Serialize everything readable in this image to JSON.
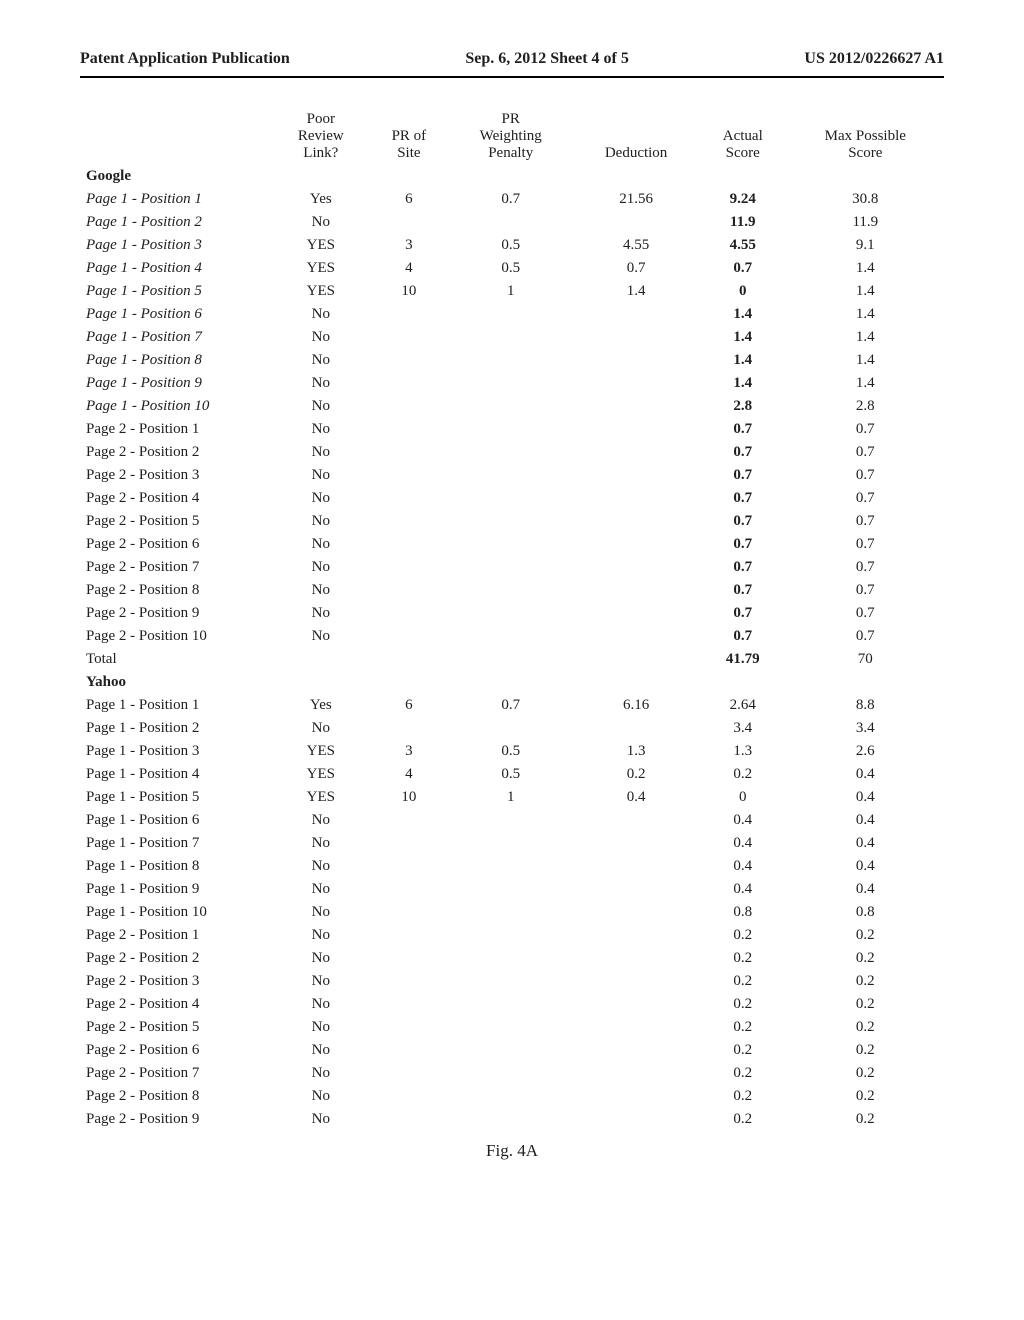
{
  "header": {
    "left": "Patent Application Publication",
    "center": "Sep. 6, 2012   Sheet 4 of 5",
    "right": "US 2012/0226627 A1"
  },
  "columns": [
    "",
    "Poor Review Link?",
    "PR of Site",
    "PR Weighting Penalty",
    "Deduction",
    "Actual Score",
    "Max Possible Score"
  ],
  "sections": [
    {
      "title": "Google",
      "rows": [
        {
          "label": "Page 1 - Position 1",
          "italic": true,
          "prl": "Yes",
          "pr": "6",
          "pen": "0.7",
          "ded": "21.56",
          "act": "9.24",
          "max": "30.8",
          "bold": true
        },
        {
          "label": "Page 1 - Position 2",
          "italic": true,
          "prl": "No",
          "pr": "",
          "pen": "",
          "ded": "",
          "act": "11.9",
          "max": "11.9",
          "bold": true
        },
        {
          "label": "Page 1 - Position 3",
          "italic": true,
          "prl": "YES",
          "pr": "3",
          "pen": "0.5",
          "ded": "4.55",
          "act": "4.55",
          "max": "9.1",
          "bold": true
        },
        {
          "label": "Page 1 - Position 4",
          "italic": true,
          "prl": "YES",
          "pr": "4",
          "pen": "0.5",
          "ded": "0.7",
          "act": "0.7",
          "max": "1.4",
          "bold": true
        },
        {
          "label": "Page 1 - Position 5",
          "italic": true,
          "prl": "YES",
          "pr": "10",
          "pen": "1",
          "ded": "1.4",
          "act": "0",
          "max": "1.4",
          "bold": true
        },
        {
          "label": "Page 1 - Position 6",
          "italic": true,
          "prl": "No",
          "pr": "",
          "pen": "",
          "ded": "",
          "act": "1.4",
          "max": "1.4",
          "bold": true
        },
        {
          "label": "Page 1 - Position 7",
          "italic": true,
          "prl": "No",
          "pr": "",
          "pen": "",
          "ded": "",
          "act": "1.4",
          "max": "1.4",
          "bold": true
        },
        {
          "label": "Page 1 - Position 8",
          "italic": true,
          "prl": "No",
          "pr": "",
          "pen": "",
          "ded": "",
          "act": "1.4",
          "max": "1.4",
          "bold": true
        },
        {
          "label": "Page 1 - Position 9",
          "italic": true,
          "prl": "No",
          "pr": "",
          "pen": "",
          "ded": "",
          "act": "1.4",
          "max": "1.4",
          "bold": true
        },
        {
          "label": "Page 1 - Position 10",
          "italic": true,
          "prl": "No",
          "pr": "",
          "pen": "",
          "ded": "",
          "act": "2.8",
          "max": "2.8",
          "bold": true
        },
        {
          "label": "Page 2 - Position 1",
          "italic": false,
          "prl": "No",
          "pr": "",
          "pen": "",
          "ded": "",
          "act": "0.7",
          "max": "0.7",
          "bold": true
        },
        {
          "label": "Page 2 - Position 2",
          "italic": false,
          "prl": "No",
          "pr": "",
          "pen": "",
          "ded": "",
          "act": "0.7",
          "max": "0.7",
          "bold": true
        },
        {
          "label": "Page 2 - Position 3",
          "italic": false,
          "prl": "No",
          "pr": "",
          "pen": "",
          "ded": "",
          "act": "0.7",
          "max": "0.7",
          "bold": true
        },
        {
          "label": "Page 2 - Position 4",
          "italic": false,
          "prl": "No",
          "pr": "",
          "pen": "",
          "ded": "",
          "act": "0.7",
          "max": "0.7",
          "bold": true
        },
        {
          "label": "Page 2 - Position 5",
          "italic": false,
          "prl": "No",
          "pr": "",
          "pen": "",
          "ded": "",
          "act": "0.7",
          "max": "0.7",
          "bold": true
        },
        {
          "label": "Page 2 - Position 6",
          "italic": false,
          "prl": "No",
          "pr": "",
          "pen": "",
          "ded": "",
          "act": "0.7",
          "max": "0.7",
          "bold": true
        },
        {
          "label": "Page 2 - Position 7",
          "italic": false,
          "prl": "No",
          "pr": "",
          "pen": "",
          "ded": "",
          "act": "0.7",
          "max": "0.7",
          "bold": true
        },
        {
          "label": "Page 2 - Position 8",
          "italic": false,
          "prl": "No",
          "pr": "",
          "pen": "",
          "ded": "",
          "act": "0.7",
          "max": "0.7",
          "bold": true
        },
        {
          "label": "Page 2 - Position 9",
          "italic": false,
          "prl": "No",
          "pr": "",
          "pen": "",
          "ded": "",
          "act": "0.7",
          "max": "0.7",
          "bold": true
        },
        {
          "label": "Page 2 - Position 10",
          "italic": false,
          "prl": "No",
          "pr": "",
          "pen": "",
          "ded": "",
          "act": "0.7",
          "max": "0.7",
          "bold": true
        },
        {
          "label": "Total",
          "italic": false,
          "prl": "",
          "pr": "",
          "pen": "",
          "ded": "",
          "act": "41.79",
          "max": "70",
          "bold": true
        }
      ]
    },
    {
      "title": "Yahoo",
      "rows": [
        {
          "label": "Page 1 - Position 1",
          "italic": false,
          "prl": "Yes",
          "pr": "6",
          "pen": "0.7",
          "ded": "6.16",
          "act": "2.64",
          "max": "8.8"
        },
        {
          "label": "Page 1 - Position 2",
          "italic": false,
          "prl": "No",
          "pr": "",
          "pen": "",
          "ded": "",
          "act": "3.4",
          "max": "3.4"
        },
        {
          "label": "Page 1 - Position 3",
          "italic": false,
          "prl": "YES",
          "pr": "3",
          "pen": "0.5",
          "ded": "1.3",
          "act": "1.3",
          "max": "2.6"
        },
        {
          "label": "Page 1 - Position 4",
          "italic": false,
          "prl": "YES",
          "pr": "4",
          "pen": "0.5",
          "ded": "0.2",
          "act": "0.2",
          "max": "0.4"
        },
        {
          "label": "Page 1 - Position 5",
          "italic": false,
          "prl": "YES",
          "pr": "10",
          "pen": "1",
          "ded": "0.4",
          "act": "0",
          "max": "0.4"
        },
        {
          "label": "Page 1 - Position 6",
          "italic": false,
          "prl": "No",
          "pr": "",
          "pen": "",
          "ded": "",
          "act": "0.4",
          "max": "0.4"
        },
        {
          "label": "Page 1 - Position 7",
          "italic": false,
          "prl": "No",
          "pr": "",
          "pen": "",
          "ded": "",
          "act": "0.4",
          "max": "0.4"
        },
        {
          "label": "Page 1 - Position 8",
          "italic": false,
          "prl": "No",
          "pr": "",
          "pen": "",
          "ded": "",
          "act": "0.4",
          "max": "0.4"
        },
        {
          "label": "Page 1 - Position 9",
          "italic": false,
          "prl": "No",
          "pr": "",
          "pen": "",
          "ded": "",
          "act": "0.4",
          "max": "0.4"
        },
        {
          "label": "Page 1 - Position 10",
          "italic": false,
          "prl": "No",
          "pr": "",
          "pen": "",
          "ded": "",
          "act": "0.8",
          "max": "0.8"
        },
        {
          "label": "Page 2 - Position 1",
          "italic": false,
          "prl": "No",
          "pr": "",
          "pen": "",
          "ded": "",
          "act": "0.2",
          "max": "0.2"
        },
        {
          "label": "Page 2 - Position 2",
          "italic": false,
          "prl": "No",
          "pr": "",
          "pen": "",
          "ded": "",
          "act": "0.2",
          "max": "0.2"
        },
        {
          "label": "Page 2 - Position 3",
          "italic": false,
          "prl": "No",
          "pr": "",
          "pen": "",
          "ded": "",
          "act": "0.2",
          "max": "0.2"
        },
        {
          "label": "Page 2 - Position 4",
          "italic": false,
          "prl": "No",
          "pr": "",
          "pen": "",
          "ded": "",
          "act": "0.2",
          "max": "0.2"
        },
        {
          "label": "Page 2 - Position 5",
          "italic": false,
          "prl": "No",
          "pr": "",
          "pen": "",
          "ded": "",
          "act": "0.2",
          "max": "0.2"
        },
        {
          "label": "Page 2 - Position 6",
          "italic": false,
          "prl": "No",
          "pr": "",
          "pen": "",
          "ded": "",
          "act": "0.2",
          "max": "0.2"
        },
        {
          "label": "Page 2 - Position 7",
          "italic": false,
          "prl": "No",
          "pr": "",
          "pen": "",
          "ded": "",
          "act": "0.2",
          "max": "0.2"
        },
        {
          "label": "Page 2 - Position 8",
          "italic": false,
          "prl": "No",
          "pr": "",
          "pen": "",
          "ded": "",
          "act": "0.2",
          "max": "0.2"
        },
        {
          "label": "Page 2 - Position 9",
          "italic": false,
          "prl": "No",
          "pr": "",
          "pen": "",
          "ded": "",
          "act": "0.2",
          "max": "0.2"
        }
      ]
    }
  ],
  "figure_caption": "Fig. 4A"
}
